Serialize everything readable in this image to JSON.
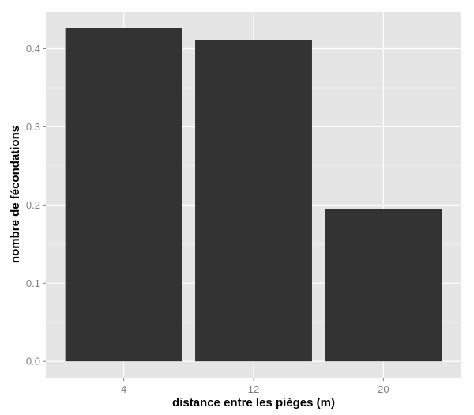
{
  "chart_data": {
    "type": "bar",
    "categories": [
      "4",
      "12",
      "20"
    ],
    "values": [
      0.426,
      0.411,
      0.195
    ],
    "title": "",
    "xlabel": "distance entre les pièges (m)",
    "ylabel": "nombre de fécondations",
    "ylim": [
      -0.021,
      0.447
    ],
    "yticks": [
      0.0,
      0.1,
      0.2,
      0.3,
      0.4
    ],
    "ytick_labels": [
      "0.0",
      "0.1",
      "0.2",
      "0.3",
      "0.4"
    ],
    "grid": true,
    "legend": "none",
    "colors": {
      "panel_background": "#e5e5e5",
      "grid_major": "#ffffff",
      "grid_minor": "#f2f2f2",
      "bar_fill": "#333333",
      "tick_text": "#7f7f7f",
      "tick_mark": "#7f7f7f",
      "axis_title": "#000000"
    }
  }
}
